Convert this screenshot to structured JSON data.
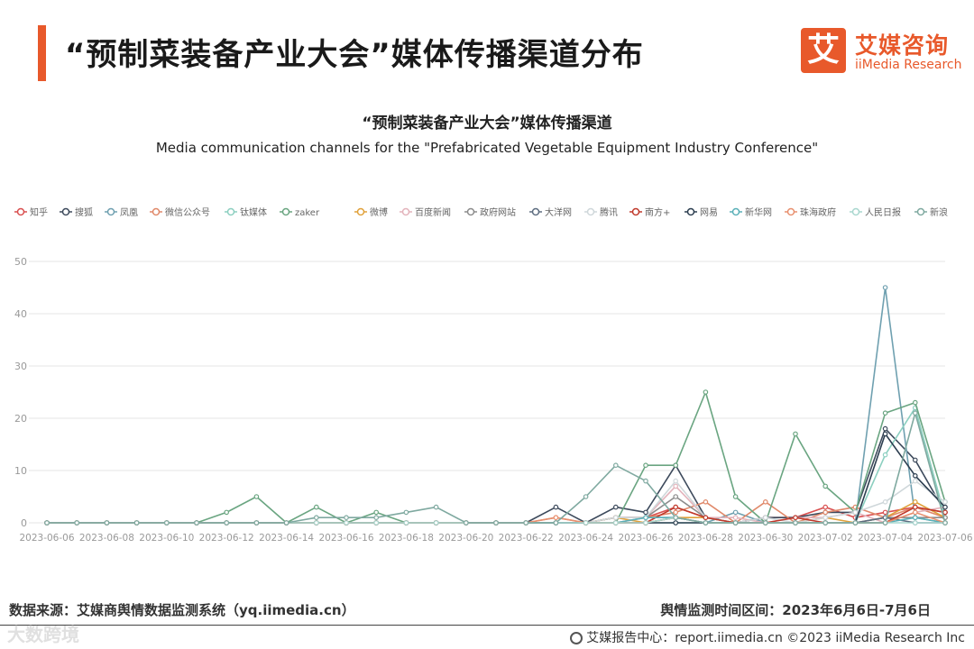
{
  "header": {
    "title": "“预制菜装备产业大会”媒体传播渠道分布",
    "logo_cn": "艾媒咨询",
    "logo_en": "iiMedia Research",
    "logo_mark": "艾"
  },
  "footer": {
    "source": "数据来源：艾媒商舆情数据监测系统（yq.iimedia.cn）",
    "period": "舆情监测时间区间：2023年6月6日-7月6日",
    "report": "艾媒报告中心：report.iimedia.cn   ©2023  iiMedia Research  Inc",
    "watermark": "大数跨境"
  },
  "colors": {
    "accent": "#e8592b",
    "grid": "#e6e6e6",
    "axis_text": "#999999"
  },
  "chart_data": {
    "type": "line",
    "title": "“预制菜装备产业大会”媒体传播渠道",
    "subtitle": "Media communication channels for the \"Prefabricated Vegetable Equipment Industry Conference\"",
    "xlabel": "",
    "ylabel": "",
    "ylim": [
      0,
      50
    ],
    "yticks": [
      0,
      10,
      20,
      30,
      40,
      50
    ],
    "grid": true,
    "legend_position": "top",
    "x": [
      "2023-06-06",
      "2023-06-07",
      "2023-06-08",
      "2023-06-09",
      "2023-06-10",
      "2023-06-11",
      "2023-06-12",
      "2023-06-13",
      "2023-06-14",
      "2023-06-15",
      "2023-06-16",
      "2023-06-17",
      "2023-06-18",
      "2023-06-19",
      "2023-06-20",
      "2023-06-21",
      "2023-06-22",
      "2023-06-23",
      "2023-06-24",
      "2023-06-25",
      "2023-06-26",
      "2023-06-27",
      "2023-06-28",
      "2023-06-29",
      "2023-06-30",
      "2023-07-01",
      "2023-07-02",
      "2023-07-03",
      "2023-07-04",
      "2023-07-05",
      "2023-07-06"
    ],
    "xtick_labels": [
      "2023-06-06",
      "2023-06-08",
      "2023-06-10",
      "2023-06-12",
      "2023-06-14",
      "2023-06-16",
      "2023-06-18",
      "2023-06-20",
      "2023-06-22",
      "2023-06-24",
      "2023-06-26",
      "2023-06-28",
      "2023-06-30",
      "2023-07-02",
      "2023-07-04",
      "2023-07-06"
    ],
    "series": [
      {
        "name": "知乎",
        "color": "#d94f4f",
        "values": [
          0,
          0,
          0,
          0,
          0,
          0,
          0,
          0,
          0,
          0,
          0,
          0,
          0,
          0,
          0,
          0,
          0,
          0,
          0,
          1,
          1,
          3,
          1,
          0,
          1,
          1,
          3,
          1,
          2,
          3,
          2
        ]
      },
      {
        "name": "搜狐",
        "color": "#3d4a5c",
        "values": [
          0,
          0,
          0,
          0,
          0,
          0,
          0,
          0,
          0,
          0,
          0,
          0,
          0,
          0,
          0,
          0,
          0,
          3,
          0,
          3,
          2,
          11,
          1,
          0,
          1,
          1,
          2,
          2,
          18,
          12,
          2
        ]
      },
      {
        "name": "凤凰",
        "color": "#6fa0b0",
        "values": [
          0,
          0,
          0,
          0,
          0,
          0,
          0,
          0,
          0,
          0,
          0,
          0,
          0,
          0,
          0,
          0,
          0,
          0,
          0,
          0,
          1,
          1,
          0,
          2,
          0,
          0,
          0,
          0,
          45,
          1,
          0
        ]
      },
      {
        "name": "微信公众号",
        "color": "#e0896a",
        "values": [
          0,
          0,
          0,
          0,
          0,
          0,
          0,
          0,
          0,
          0,
          0,
          0,
          0,
          0,
          0,
          0,
          0,
          1,
          0,
          1,
          1,
          2,
          4,
          0,
          4,
          0,
          2,
          3,
          1,
          3,
          1
        ]
      },
      {
        "name": "钛媒体",
        "color": "#8ccfc0",
        "values": [
          0,
          0,
          0,
          0,
          0,
          0,
          0,
          0,
          0,
          0,
          0,
          0,
          0,
          0,
          0,
          0,
          0,
          0,
          0,
          0,
          0,
          0,
          0,
          0,
          0,
          0,
          0,
          0,
          13,
          22,
          1
        ]
      },
      {
        "name": "zaker",
        "color": "#6aa581",
        "values": [
          0,
          0,
          0,
          0,
          0,
          0,
          2,
          5,
          0,
          3,
          0,
          2,
          0,
          0,
          0,
          0,
          0,
          0,
          0,
          0,
          11,
          11,
          25,
          5,
          0,
          17,
          7,
          2,
          21,
          23,
          4
        ]
      },
      {
        "name": "微博",
        "color": "#e0a13a",
        "values": [
          0,
          0,
          0,
          0,
          0,
          0,
          0,
          0,
          0,
          0,
          0,
          0,
          0,
          0,
          0,
          0,
          0,
          0,
          0,
          1,
          0,
          1,
          1,
          0,
          0,
          0,
          1,
          0,
          1,
          4,
          1
        ]
      },
      {
        "name": "百度新闻",
        "color": "#e3b3bb",
        "values": [
          0,
          0,
          0,
          0,
          0,
          0,
          0,
          0,
          0,
          0,
          0,
          0,
          0,
          0,
          0,
          0,
          0,
          0,
          0,
          0,
          1,
          7,
          1,
          1,
          0,
          1,
          1,
          2,
          0,
          2,
          3
        ]
      },
      {
        "name": "政府网站",
        "color": "#8c8c8c",
        "values": [
          0,
          0,
          0,
          0,
          0,
          0,
          0,
          0,
          0,
          0,
          0,
          0,
          0,
          0,
          0,
          0,
          0,
          0,
          0,
          1,
          1,
          5,
          1,
          0,
          0,
          0,
          0,
          0,
          1,
          1,
          1
        ]
      },
      {
        "name": "大洋网",
        "color": "#5d6d80",
        "values": [
          0,
          0,
          0,
          0,
          0,
          0,
          0,
          0,
          0,
          0,
          0,
          0,
          0,
          0,
          0,
          0,
          0,
          0,
          0,
          0,
          0,
          1,
          0,
          0,
          0,
          0,
          0,
          0,
          1,
          0,
          0
        ]
      },
      {
        "name": "腾讯",
        "color": "#cfd7da",
        "values": [
          0,
          0,
          0,
          0,
          0,
          0,
          0,
          0,
          0,
          0,
          0,
          0,
          0,
          0,
          0,
          0,
          0,
          0,
          0,
          1,
          1,
          8,
          1,
          0,
          1,
          0,
          1,
          2,
          4,
          8,
          4
        ]
      },
      {
        "name": "南方+",
        "color": "#c0392b",
        "values": [
          0,
          0,
          0,
          0,
          0,
          0,
          0,
          0,
          0,
          0,
          0,
          0,
          0,
          0,
          0,
          0,
          0,
          0,
          0,
          0,
          0,
          3,
          1,
          0,
          0,
          1,
          0,
          0,
          0,
          3,
          2
        ]
      },
      {
        "name": "网易",
        "color": "#2c3e50",
        "values": [
          0,
          0,
          0,
          0,
          0,
          0,
          0,
          0,
          0,
          0,
          0,
          0,
          0,
          0,
          0,
          0,
          0,
          0,
          0,
          0,
          0,
          0,
          0,
          0,
          0,
          0,
          0,
          0,
          17,
          9,
          3
        ]
      },
      {
        "name": "新华网",
        "color": "#5ab0b8",
        "values": [
          0,
          0,
          0,
          0,
          0,
          0,
          0,
          0,
          0,
          0,
          0,
          0,
          0,
          0,
          0,
          0,
          0,
          0,
          0,
          0,
          1,
          1,
          0,
          0,
          0,
          0,
          0,
          0,
          0,
          1,
          0
        ]
      },
      {
        "name": "珠海政府",
        "color": "#e8906f",
        "values": [
          0,
          0,
          0,
          0,
          0,
          0,
          0,
          0,
          0,
          0,
          0,
          0,
          0,
          0,
          0,
          0,
          0,
          1,
          0,
          0,
          0,
          1,
          0,
          0,
          0,
          0,
          0,
          0,
          0,
          2,
          0
        ]
      },
      {
        "name": "人民日报",
        "color": "#a9d7cf",
        "values": [
          0,
          0,
          0,
          0,
          0,
          0,
          0,
          0,
          0,
          0,
          0,
          0,
          0,
          0,
          0,
          0,
          0,
          0,
          0,
          0,
          0,
          1,
          0,
          0,
          0,
          0,
          0,
          0,
          0,
          0,
          0
        ]
      },
      {
        "name": "新浪",
        "color": "#7fa9a0",
        "values": [
          0,
          0,
          0,
          0,
          0,
          0,
          0,
          0,
          0,
          1,
          1,
          1,
          2,
          3,
          0,
          0,
          0,
          0,
          5,
          11,
          8,
          1,
          0,
          0,
          0,
          0,
          0,
          0,
          0,
          21,
          0
        ]
      }
    ]
  }
}
